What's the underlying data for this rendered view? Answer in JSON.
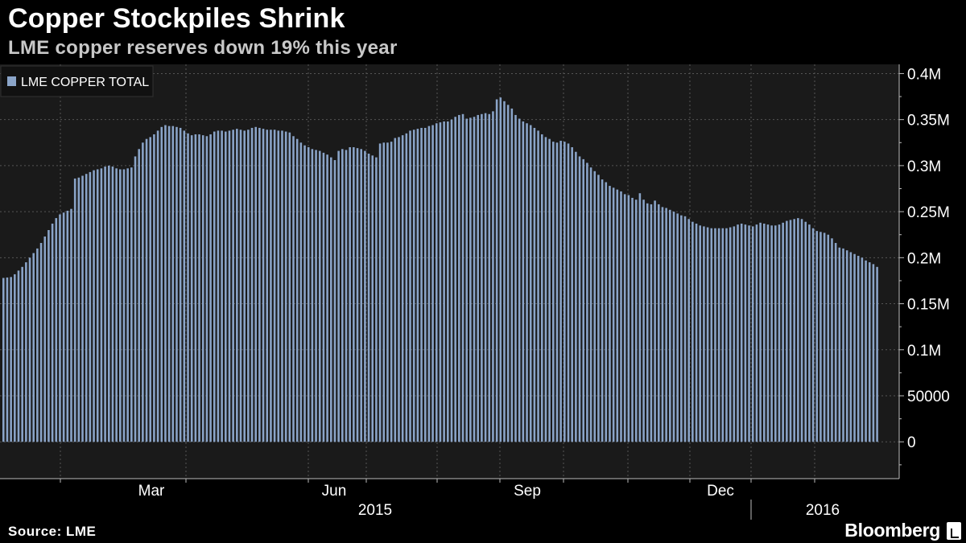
{
  "header": {
    "title": "Copper Stockpiles Shrink",
    "subtitle": "LME copper reserves down 19% this year"
  },
  "footer": {
    "source": "Source: LME",
    "brand": "Bloomberg"
  },
  "colors": {
    "background": "#000000",
    "plot_background": "#1a1a1a",
    "bar": "#8aa4c8",
    "grid": "#555555"
  },
  "chart_data": {
    "type": "bar",
    "title": "Copper Stockpiles Shrink",
    "subtitle": "LME copper reserves down 19% this year",
    "series": [
      {
        "name": "LME COPPER TOTAL",
        "frequency": "weekly-ish (trading days sampled)",
        "x_start": "2015-01-15",
        "x_end": "2016-02-29",
        "values": [
          178000,
          178500,
          179000,
          182000,
          186000,
          190000,
          195000,
          200000,
          205000,
          210000,
          216000,
          223000,
          230000,
          237000,
          243000,
          247000,
          249000,
          251000,
          253000,
          286000,
          287000,
          289000,
          291000,
          293000,
          295000,
          296000,
          297000,
          299000,
          300000,
          299000,
          297000,
          296000,
          296000,
          297000,
          298000,
          310000,
          318000,
          325000,
          329000,
          331000,
          334000,
          338000,
          342000,
          344000,
          343000,
          343000,
          342000,
          341000,
          338000,
          335000,
          333000,
          334000,
          334000,
          333000,
          332000,
          334000,
          337000,
          338000,
          338000,
          337000,
          338000,
          339000,
          340000,
          339000,
          338000,
          339000,
          341000,
          342000,
          341000,
          340000,
          339000,
          339000,
          339000,
          338000,
          338000,
          337000,
          336000,
          332000,
          329000,
          325000,
          322000,
          320000,
          318000,
          317000,
          316000,
          314000,
          312000,
          309000,
          306000,
          316000,
          318000,
          317000,
          320000,
          320000,
          319000,
          318000,
          316000,
          313000,
          311000,
          309000,
          324000,
          325000,
          325000,
          326000,
          330000,
          331000,
          333000,
          335000,
          338000,
          339000,
          340000,
          341000,
          341000,
          343000,
          344000,
          346000,
          347000,
          348000,
          348000,
          350000,
          353000,
          355000,
          356000,
          351000,
          352000,
          353000,
          355000,
          356000,
          357000,
          356000,
          359000,
          372000,
          374000,
          370000,
          366000,
          362000,
          355000,
          351000,
          348000,
          346000,
          344000,
          341000,
          338000,
          334000,
          331000,
          329000,
          326000,
          325000,
          327000,
          326000,
          324000,
          320000,
          315000,
          310000,
          307000,
          303000,
          298000,
          294000,
          290000,
          285000,
          282000,
          278000,
          276000,
          274000,
          272000,
          269000,
          268000,
          265000,
          263000,
          270000,
          263000,
          259000,
          258000,
          262000,
          258000,
          255000,
          254000,
          252000,
          250000,
          248000,
          246000,
          245000,
          242000,
          239000,
          237000,
          235000,
          234000,
          233000,
          232000,
          232000,
          232000,
          232000,
          232000,
          233000,
          234000,
          236000,
          237000,
          236000,
          235000,
          234000,
          236000,
          238000,
          237000,
          236000,
          235000,
          235000,
          236000,
          238000,
          240000,
          241000,
          242000,
          243000,
          242000,
          239000,
          236000,
          232000,
          229000,
          228000,
          227000,
          225000,
          221000,
          216000,
          211000,
          210000,
          208000,
          206000,
          204000,
          202000,
          200000,
          197000,
          195000,
          193000,
          190000
        ]
      }
    ],
    "x_axis": {
      "tick_labels": [
        "Mar",
        "Jun",
        "Sep",
        "Dec"
      ],
      "year_labels": [
        "2015",
        "2016"
      ]
    },
    "y_axis": {
      "position": "right",
      "ylim": [
        -40000,
        410000
      ],
      "tick_values": [
        0,
        50000,
        100000,
        150000,
        200000,
        250000,
        300000,
        350000,
        400000
      ],
      "tick_labels": [
        "0",
        "50000",
        "0.1M",
        "0.15M",
        "0.2M",
        "0.25M",
        "0.3M",
        "0.35M",
        "0.4M"
      ]
    },
    "legend": {
      "placement": "top-left",
      "entries": [
        "LME COPPER TOTAL"
      ]
    },
    "grid": "dashed vertical and horizontal"
  }
}
